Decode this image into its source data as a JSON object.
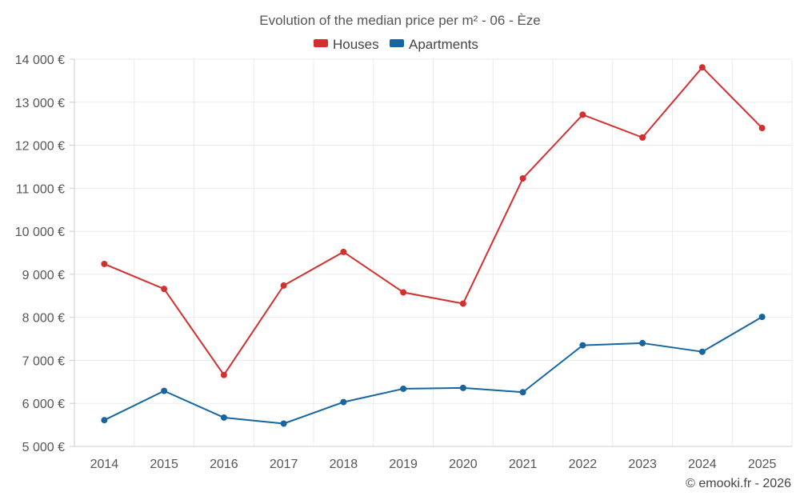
{
  "chart_data": {
    "type": "line",
    "title": "Evolution of the median price per m² - 06 - Èze",
    "xlabel": "",
    "ylabel": "",
    "categories": [
      "2014",
      "2015",
      "2016",
      "2017",
      "2018",
      "2019",
      "2020",
      "2021",
      "2022",
      "2023",
      "2024",
      "2025"
    ],
    "ylim": [
      5000,
      14000
    ],
    "yticks": [
      5000,
      6000,
      7000,
      8000,
      9000,
      10000,
      11000,
      12000,
      13000,
      14000
    ],
    "ytick_labels": [
      "5 000 €",
      "6 000 €",
      "7 000 €",
      "8 000 €",
      "9 000 €",
      "10 000 €",
      "11 000 €",
      "12 000 €",
      "13 000 €",
      "14 000 €"
    ],
    "grid": true,
    "legend_position": "top-center",
    "series": [
      {
        "name": "Houses",
        "color": "#d32f2f",
        "values": [
          9240,
          8660,
          6660,
          8740,
          9520,
          8580,
          8320,
          11230,
          12710,
          12180,
          13810,
          12400
        ]
      },
      {
        "name": "Apartments",
        "color": "#1565a0",
        "values": [
          5610,
          6290,
          5670,
          5530,
          6030,
          6340,
          6360,
          6260,
          7350,
          7400,
          7200,
          8010
        ]
      }
    ]
  },
  "credit": "© emooki.fr - 2026"
}
